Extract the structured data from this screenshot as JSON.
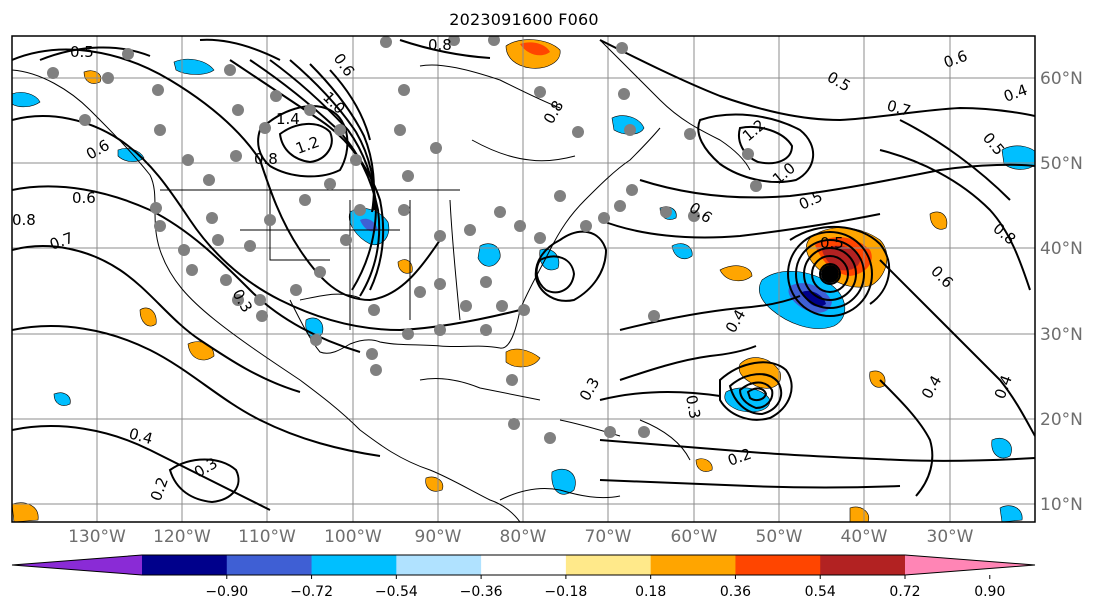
{
  "title": "2023091600 F060",
  "axes": {
    "lon_labels": [
      "130°W",
      "120°W",
      "110°W",
      "100°W",
      "90°W",
      "80°W",
      "70°W",
      "60°W",
      "50°W",
      "40°W",
      "30°W"
    ],
    "lat_labels": [
      "60°N",
      "50°N",
      "40°N",
      "30°N",
      "20°N",
      "10°N"
    ]
  },
  "colorbar": {
    "ticks": [
      "−0.90",
      "−0.72",
      "−0.54",
      "−0.36",
      "−0.18",
      "0.18",
      "0.36",
      "0.54",
      "0.72",
      "0.90"
    ],
    "colors": [
      "#8a2bd6",
      "#00008b",
      "#3f5fd4",
      "#00bfff",
      "#b0e2ff",
      "#ffffff",
      "#ffe98a",
      "#ffa500",
      "#ff4500",
      "#b22222",
      "#ff85b5"
    ]
  },
  "contour_labels": [
    {
      "text": "0.5"
    },
    {
      "text": "0.6"
    },
    {
      "text": "0.8"
    },
    {
      "text": "1.0"
    },
    {
      "text": "1.4"
    },
    {
      "text": "1.2"
    },
    {
      "text": "0.6"
    },
    {
      "text": "0.8"
    },
    {
      "text": "0.7"
    },
    {
      "text": "0.3"
    },
    {
      "text": "0.4"
    },
    {
      "text": "0.3"
    },
    {
      "text": "0.2"
    },
    {
      "text": "0.8"
    },
    {
      "text": "1.2"
    },
    {
      "text": "1.0"
    },
    {
      "text": "0.6"
    },
    {
      "text": "0.5"
    },
    {
      "text": "0.5"
    },
    {
      "text": "0.7"
    },
    {
      "text": "0.6"
    },
    {
      "text": "0.4"
    },
    {
      "text": "0.5"
    },
    {
      "text": "0.8"
    },
    {
      "text": "0.6"
    },
    {
      "text": "0.4"
    },
    {
      "text": "0.3"
    },
    {
      "text": "0.2"
    },
    {
      "text": "0.3"
    },
    {
      "text": "0.4"
    },
    {
      "text": "0.4"
    },
    {
      "text": "0.6"
    },
    {
      "text": "0.5"
    },
    {
      "text": "0.8"
    }
  ]
}
